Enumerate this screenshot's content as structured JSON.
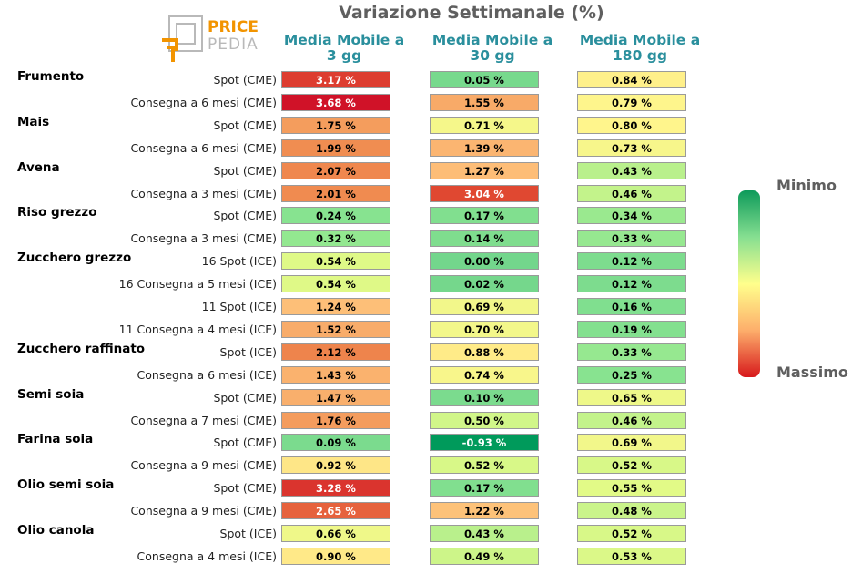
{
  "chart_data": {
    "type": "table",
    "title": "Variazione Settimanale (%)",
    "columns": [
      {
        "line1": "Media Mobile a",
        "line2": "3 gg"
      },
      {
        "line1": "Media Mobile a",
        "line2": "30 gg"
      },
      {
        "line1": "Media Mobile a",
        "line2": "180 gg"
      }
    ],
    "value_suffix": " %",
    "rows": [
      {
        "group": "Frumento",
        "label": "Spot (CME)",
        "values": [
          3.17,
          0.05,
          0.84
        ]
      },
      {
        "group": "",
        "label": "Consegna a 6 mesi (CME)",
        "values": [
          3.68,
          1.55,
          0.79
        ]
      },
      {
        "group": "Mais",
        "label": "Spot (CME)",
        "values": [
          1.75,
          0.71,
          0.8
        ]
      },
      {
        "group": "",
        "label": "Consegna a 6 mesi (CME)",
        "values": [
          1.99,
          1.39,
          0.73
        ]
      },
      {
        "group": "Avena",
        "label": "Spot (CME)",
        "values": [
          2.07,
          1.27,
          0.43
        ]
      },
      {
        "group": "",
        "label": "Consegna a 3 mesi (CME)",
        "values": [
          2.01,
          3.04,
          0.46
        ]
      },
      {
        "group": "Riso grezzo",
        "label": "Spot (CME)",
        "values": [
          0.24,
          0.17,
          0.34
        ]
      },
      {
        "group": "",
        "label": "Consegna a 3 mesi (CME)",
        "values": [
          0.32,
          0.14,
          0.33
        ]
      },
      {
        "group": "Zucchero grezzo",
        "label": "16 Spot (ICE)",
        "values": [
          0.54,
          0.0,
          0.12
        ]
      },
      {
        "group": "",
        "label": "16 Consegna a 5 mesi (ICE)",
        "values": [
          0.54,
          0.02,
          0.12
        ]
      },
      {
        "group": "",
        "label": "11 Spot (ICE)",
        "values": [
          1.24,
          0.69,
          0.16
        ]
      },
      {
        "group": "",
        "label": "11 Consegna a 4 mesi (ICE)",
        "values": [
          1.52,
          0.7,
          0.19
        ]
      },
      {
        "group": "Zucchero raffinato",
        "label": "Spot (ICE)",
        "values": [
          2.12,
          0.88,
          0.33
        ]
      },
      {
        "group": "",
        "label": "Consegna a 6 mesi (ICE)",
        "values": [
          1.43,
          0.74,
          0.25
        ]
      },
      {
        "group": "Semi soia",
        "label": "Spot (CME)",
        "values": [
          1.47,
          0.1,
          0.65
        ]
      },
      {
        "group": "",
        "label": "Consegna a 7 mesi (CME)",
        "values": [
          1.76,
          0.5,
          0.46
        ]
      },
      {
        "group": "Farina soia",
        "label": "Spot (CME)",
        "values": [
          0.09,
          -0.93,
          0.69
        ]
      },
      {
        "group": "",
        "label": "Consegna a 9 mesi (CME)",
        "values": [
          0.92,
          0.52,
          0.52
        ]
      },
      {
        "group": "Olio semi soia",
        "label": "Spot (CME)",
        "values": [
          3.28,
          0.17,
          0.55
        ]
      },
      {
        "group": "",
        "label": "Consegna a 9 mesi (CME)",
        "values": [
          2.65,
          1.22,
          0.48
        ]
      },
      {
        "group": "Olio canola",
        "label": "Spot (ICE)",
        "values": [
          0.66,
          0.43,
          0.52
        ]
      },
      {
        "group": "",
        "label": "Consegna a 4 mesi (ICE)",
        "values": [
          0.9,
          0.49,
          0.53
        ]
      }
    ],
    "colorbar": {
      "min_label": "Minimo",
      "max_label": "Massimo"
    },
    "colors": {
      "min": "#009a5b",
      "low": "#86df91",
      "mid": "#ffff8c",
      "high": "#fdae6b",
      "max": "#d7191c"
    }
  },
  "logo": {
    "word1": "PRICE",
    "word2": "PEDIA"
  }
}
